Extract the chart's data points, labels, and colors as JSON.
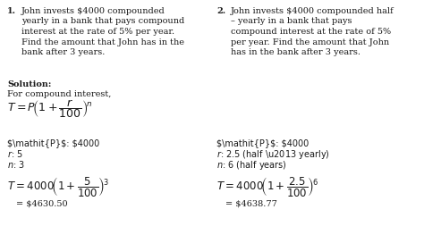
{
  "background_color": "#ffffff",
  "figsize": [
    4.74,
    2.72
  ],
  "dpi": 100,
  "text_color": "#1a1a1a",
  "font_size_body": 7.0,
  "font_size_formula": 8.5,
  "p1_lines": [
    "yearly in a bank that pays compound",
    "interest at the rate of 5% per year.",
    "Find the amount that John has in the",
    "bank after 3 years."
  ],
  "p2_lines": [
    "– yearly in a bank that pays",
    "compound interest at the rate of 5%",
    "per year. Find the amount that John",
    "has in the bank after 3 years."
  ],
  "p1_first": "John invests $4000 compounded",
  "p2_first": "John invests $4000 compounded half",
  "solution_bold": "Solution:",
  "for_compound": "For compound interest,",
  "p1_P": "P: $4000",
  "p1_r": "r: 5",
  "p1_n": "n: 3",
  "p2_P": "P: $4000",
  "p2_r": "r: 2.5 (half – yearly)",
  "p2_n": "n: 6 (half years)",
  "p1_result": "= $4630.50",
  "p2_result": "= $4638.77"
}
